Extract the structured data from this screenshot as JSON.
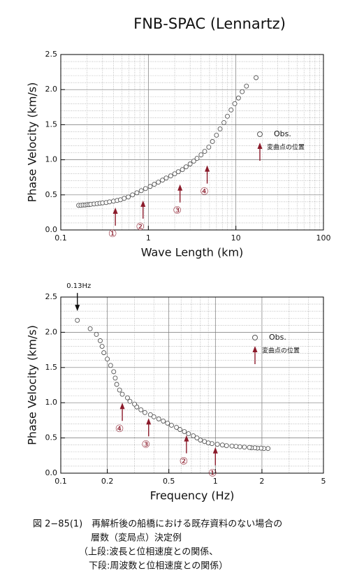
{
  "chart_data": [
    {
      "type": "scatter",
      "title": "FNB-SPAC (Lennartz)",
      "xlabel": "Wave Length (km)",
      "ylabel": "Phase Velocity (km/s)",
      "xscale": "log",
      "xlim": [
        0.1,
        100
      ],
      "xticks": [
        0.1,
        1,
        10,
        100
      ],
      "xminor": [
        0.2,
        0.3,
        0.4,
        0.5,
        0.6,
        0.7,
        0.8,
        0.9,
        2,
        3,
        4,
        5,
        6,
        7,
        8,
        9,
        20,
        30,
        40,
        50,
        60,
        70,
        80,
        90
      ],
      "ylim": [
        0,
        2.5
      ],
      "yticks": [
        {
          "value": 0,
          "label": "0.0"
        },
        0.5,
        {
          "value": 1,
          "label": "1.0"
        },
        1.5,
        {
          "value": 2,
          "label": "2.0"
        },
        2.5
      ],
      "yminor": [
        0.1,
        0.2,
        0.3,
        0.4,
        0.6,
        0.7,
        0.8,
        0.9,
        1.1,
        1.2,
        1.3,
        1.4,
        1.6,
        1.7,
        1.8,
        1.9,
        2.1,
        2.2,
        2.3,
        2.4
      ],
      "grid": true,
      "legend": "right",
      "legend_arrow_label": "変曲点の位置",
      "legend_arrow_color": "#8b1a2a",
      "series": [
        {
          "name": "Obs.",
          "color": "#555555",
          "x": [
            0.16,
            0.17,
            0.18,
            0.19,
            0.2,
            0.21,
            0.22,
            0.24,
            0.26,
            0.28,
            0.3,
            0.33,
            0.36,
            0.4,
            0.44,
            0.48,
            0.53,
            0.59,
            0.66,
            0.74,
            0.83,
            0.93,
            1.05,
            1.17,
            1.3,
            1.45,
            1.6,
            1.8,
            2.0,
            2.2,
            2.45,
            2.7,
            3.0,
            3.3,
            3.6,
            4.0,
            4.4,
            4.9,
            5.4,
            6.0,
            6.6,
            7.3,
            8.0,
            8.8,
            9.7,
            10.7,
            11.8,
            13.2,
            17.0
          ],
          "values": [
            0.35,
            0.35,
            0.355,
            0.355,
            0.36,
            0.36,
            0.365,
            0.37,
            0.375,
            0.38,
            0.385,
            0.39,
            0.4,
            0.41,
            0.42,
            0.43,
            0.45,
            0.47,
            0.5,
            0.53,
            0.56,
            0.59,
            0.62,
            0.65,
            0.68,
            0.71,
            0.74,
            0.77,
            0.8,
            0.83,
            0.86,
            0.9,
            0.94,
            0.98,
            1.02,
            1.07,
            1.12,
            1.18,
            1.26,
            1.35,
            1.44,
            1.53,
            1.62,
            1.71,
            1.8,
            1.88,
            1.97,
            2.05,
            2.17
          ]
        }
      ],
      "annotations": [
        {
          "text": "①",
          "x": 0.42,
          "y": 0.32,
          "direction": "up",
          "color": "#8b1a2a"
        },
        {
          "text": "②",
          "x": 0.87,
          "y": 0.42,
          "direction": "up",
          "color": "#8b1a2a"
        },
        {
          "text": "③",
          "x": 2.3,
          "y": 0.65,
          "direction": "up",
          "color": "#8b1a2a"
        },
        {
          "text": "④",
          "x": 4.7,
          "y": 0.92,
          "direction": "up",
          "color": "#8b1a2a"
        }
      ]
    },
    {
      "type": "scatter",
      "xlabel": "Frequency (Hz)",
      "ylabel": "Phase Velocity (km/s)",
      "xscale": "log",
      "xlim": [
        0.1,
        5
      ],
      "xticks": [
        0.1,
        0.2,
        0.5,
        1,
        2,
        5
      ],
      "xminor": [
        0.3,
        0.4,
        0.6,
        0.7,
        0.8,
        0.9,
        3,
        4
      ],
      "ylim": [
        0,
        2.5
      ],
      "yticks": [
        {
          "value": 0,
          "label": "0.0"
        },
        0.5,
        {
          "value": 1,
          "label": "1.0"
        },
        1.5,
        {
          "value": 2,
          "label": "2.0"
        },
        2.5
      ],
      "yminor": [
        0.1,
        0.2,
        0.3,
        0.4,
        0.6,
        0.7,
        0.8,
        0.9,
        1.1,
        1.2,
        1.3,
        1.4,
        1.6,
        1.7,
        1.8,
        1.9,
        2.1,
        2.2,
        2.3,
        2.4
      ],
      "grid": true,
      "legend": "right",
      "legend_arrow_label": "変曲点の位置",
      "legend_arrow_color": "#8b1a2a",
      "series": [
        {
          "name": "Obs.",
          "color": "#555555",
          "x": [
            2.19,
            2.06,
            1.97,
            1.87,
            1.8,
            1.71,
            1.66,
            1.54,
            1.44,
            1.36,
            1.28,
            1.18,
            1.11,
            1.03,
            0.95,
            0.9,
            0.85,
            0.8,
            0.76,
            0.72,
            0.67,
            0.63,
            0.59,
            0.56,
            0.52,
            0.49,
            0.46,
            0.43,
            0.4,
            0.38,
            0.35,
            0.33,
            0.31,
            0.3,
            0.28,
            0.27,
            0.25,
            0.24,
            0.23,
            0.225,
            0.22,
            0.21,
            0.2,
            0.19,
            0.185,
            0.18,
            0.17,
            0.155,
            0.128
          ],
          "values": [
            0.35,
            0.35,
            0.355,
            0.355,
            0.36,
            0.36,
            0.365,
            0.37,
            0.375,
            0.38,
            0.385,
            0.39,
            0.4,
            0.41,
            0.42,
            0.43,
            0.45,
            0.47,
            0.5,
            0.53,
            0.56,
            0.59,
            0.62,
            0.65,
            0.68,
            0.71,
            0.74,
            0.77,
            0.8,
            0.83,
            0.86,
            0.9,
            0.94,
            0.98,
            1.02,
            1.07,
            1.12,
            1.18,
            1.26,
            1.35,
            1.44,
            1.53,
            1.62,
            1.71,
            1.8,
            1.88,
            1.97,
            2.05,
            2.17
          ]
        }
      ],
      "annotations": [
        {
          "text": "0.13Hz",
          "x": 0.128,
          "y": 2.3,
          "direction": "down",
          "color": "#111111"
        },
        {
          "text": "①",
          "x": 1.0,
          "y": 0.37,
          "direction": "up",
          "color": "#8b1a2a"
        },
        {
          "text": "②",
          "x": 0.65,
          "y": 0.54,
          "direction": "up",
          "color": "#8b1a2a"
        },
        {
          "text": "③",
          "x": 0.37,
          "y": 0.78,
          "direction": "up",
          "color": "#8b1a2a"
        },
        {
          "text": "④",
          "x": 0.25,
          "y": 1.0,
          "direction": "up",
          "color": "#8b1a2a"
        }
      ]
    }
  ],
  "caption": [
    "図 2−85(1)　再解析後の船橋における既存資料のない場合の",
    "層数（変局点）決定例",
    "（上段:波長と位相速度との関係、",
    "下段:周波数と位相速度との関係）"
  ]
}
